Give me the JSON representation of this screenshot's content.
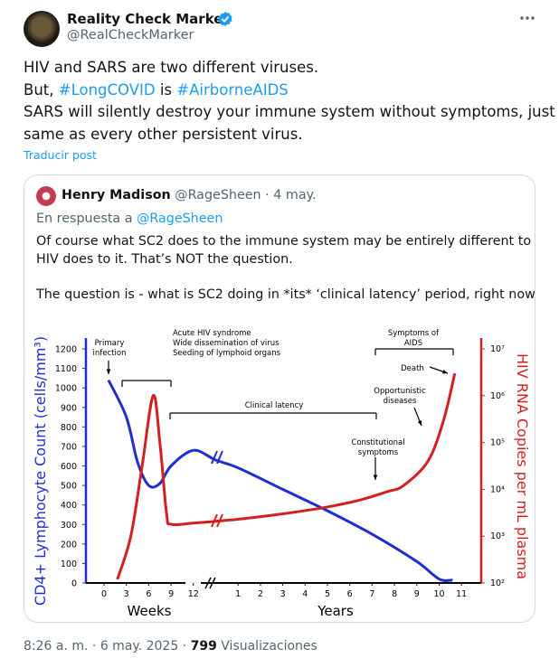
{
  "author": {
    "name": "Reality Check Marker",
    "handle": "@RealCheckMarker"
  },
  "post": {
    "line1": "HIV and SARS are two different viruses.",
    "line2": {
      "prefix": "But,",
      "tag1": "#LongCOVID",
      "mid": "is",
      "tag2": "#AirborneAIDS"
    },
    "line3": "SARS will silently destroy your immune system without symptoms, just the",
    "line4": "same as every other persistent virus.",
    "translate": "Traducir post"
  },
  "quote": {
    "name": "Henry Madison",
    "handle": "@RageSheen",
    "date": "4 may.",
    "reply_prefix": "En respuesta a",
    "reply_handle": "@RageSheen",
    "lines": [
      "Of course what SC2 does to the immune system may be entirely different to what",
      "HIV does to it. That’s NOT the question.",
      "The question is - what is SC2 doing in *its* ‘clinical latency’ period, right now? D..."
    ]
  },
  "chart_data": {
    "type": "line",
    "ylabel": "CD4+ Lymphocyte Count (cells/mm³)",
    "y2label": "HIV RNA Copies per mL plasma",
    "xlabel_left": "Weeks",
    "xlabel_right": "Years",
    "xlim": [
      -0.8,
      17.1
    ],
    "xticks": [
      {
        "value": 0,
        "label": "0"
      },
      {
        "value": 1,
        "label": "3"
      },
      {
        "value": 2,
        "label": "6"
      },
      {
        "value": 3,
        "label": "9"
      },
      {
        "value": 4,
        "label": "12"
      },
      {
        "value": 6,
        "label": "1"
      },
      {
        "value": 7,
        "label": "2"
      },
      {
        "value": 8,
        "label": "3"
      },
      {
        "value": 9,
        "label": "4"
      },
      {
        "value": 10,
        "label": "5"
      },
      {
        "value": 11,
        "label": "6"
      },
      {
        "value": 12,
        "label": "7"
      },
      {
        "value": 13,
        "label": "8"
      },
      {
        "value": 14,
        "label": "9"
      },
      {
        "value": 15,
        "label": "10"
      },
      {
        "value": 16,
        "label": "11"
      }
    ],
    "ylim": [
      0,
      1200
    ],
    "yticks": [
      0,
      100,
      200,
      300,
      400,
      500,
      600,
      700,
      800,
      900,
      1000,
      1100,
      1200
    ],
    "y2lim": [
      100,
      10000000
    ],
    "y2log": true,
    "y2ticks": [
      {
        "value": 100,
        "label": "10²"
      },
      {
        "value": 1000,
        "label": "10³"
      },
      {
        "value": 10000,
        "label": "10⁴"
      },
      {
        "value": 100000,
        "label": "10⁵"
      },
      {
        "value": 1000000,
        "label": "10⁶"
      },
      {
        "value": 10000000,
        "label": "10⁷"
      }
    ],
    "series": [
      {
        "color": "#1f2fcf",
        "x": [
          0.2,
          1,
          1.5,
          2,
          2.5,
          3,
          4,
          5,
          6,
          8,
          10,
          12,
          14,
          15,
          15.6
        ],
        "values": [
          1040,
          850,
          620,
          500,
          510,
          600,
          680,
          630,
          590,
          480,
          370,
          250,
          110,
          20,
          15
        ]
      },
      {
        "color": "#d41f1f",
        "axis": "y2",
        "x": [
          0.6,
          1.2,
          1.7,
          2.2,
          2.5,
          2.8,
          3,
          4,
          6,
          8,
          10,
          11.5,
          12.7,
          13.4,
          14.5,
          15.2,
          15.7
        ],
        "values": [
          120,
          1000,
          30000,
          1000000,
          100000,
          3000,
          1800,
          1900,
          2300,
          3000,
          4200,
          6000,
          9000,
          12000,
          40000,
          300000,
          3000000
        ]
      }
    ],
    "annotations": [
      {
        "lines": [
          "Primary",
          "infection"
        ]
      },
      {
        "lines": [
          "Acute HIV syndrome",
          "Wide dissemination of virus",
          "Seeding of lymphoid organs"
        ]
      },
      {
        "lines": [
          "Clinical latency"
        ]
      },
      {
        "lines": [
          "Symptoms of",
          "AIDS"
        ]
      },
      {
        "lines": [
          "Death"
        ]
      },
      {
        "lines": [
          "Opportunistic",
          "diseases"
        ]
      },
      {
        "lines": [
          "Constitutional",
          "symptoms"
        ]
      }
    ]
  },
  "footer": {
    "time": "8:26 a. m.",
    "date": "6 may. 2025",
    "views": 799,
    "views_label": "Visualizaciones"
  }
}
